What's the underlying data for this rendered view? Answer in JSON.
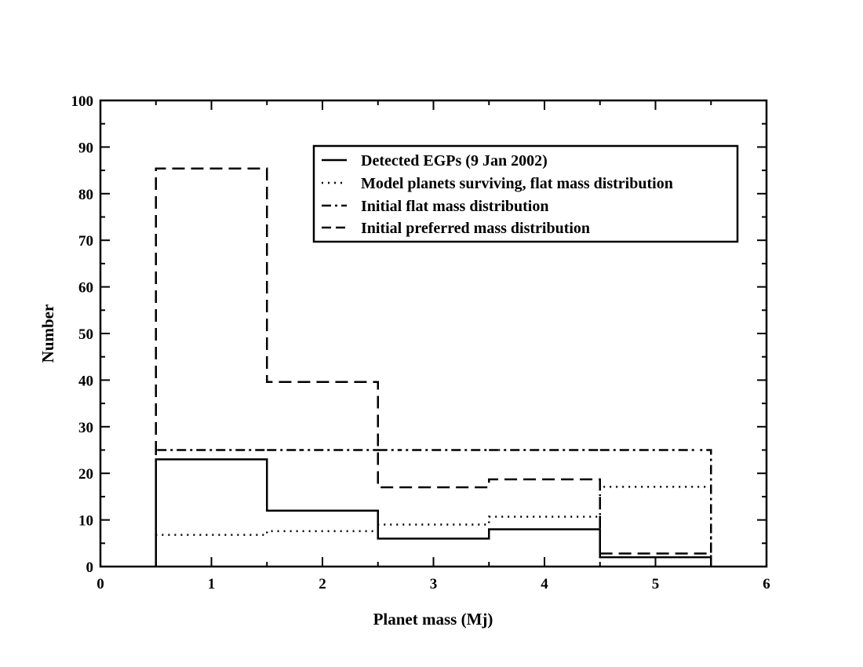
{
  "chart_data": {
    "type": "line",
    "xlabel": "Planet mass (Mj)",
    "ylabel": "Number",
    "xlim": [
      0,
      6
    ],
    "ylim": [
      0,
      100
    ],
    "xticks": [
      "0",
      "1",
      "2",
      "3",
      "4",
      "5",
      "6"
    ],
    "yticks": [
      "0",
      "10",
      "20",
      "30",
      "40",
      "50",
      "60",
      "70",
      "80",
      "90",
      "100"
    ],
    "grid": false,
    "legend_position": "top-right",
    "bin_edges": [
      0.5,
      1.5,
      2.5,
      3.5,
      4.5,
      5.5
    ],
    "series": [
      {
        "name": "Detected EGPs (9 Jan 2002)",
        "style": "solid",
        "values": [
          23,
          12,
          6,
          8,
          2
        ]
      },
      {
        "name": "Model planets surviving, flat mass distribution",
        "style": "dotted",
        "values": [
          6.8,
          7.6,
          9,
          10.7,
          17.1
        ]
      },
      {
        "name": "Initial flat mass distribution",
        "style": "dashdot",
        "values": [
          25,
          25,
          25,
          25,
          25
        ]
      },
      {
        "name": "Initial preferred mass distribution",
        "style": "dashed",
        "values": [
          85.4,
          39.6,
          17,
          18.7,
          2.8
        ]
      }
    ]
  }
}
